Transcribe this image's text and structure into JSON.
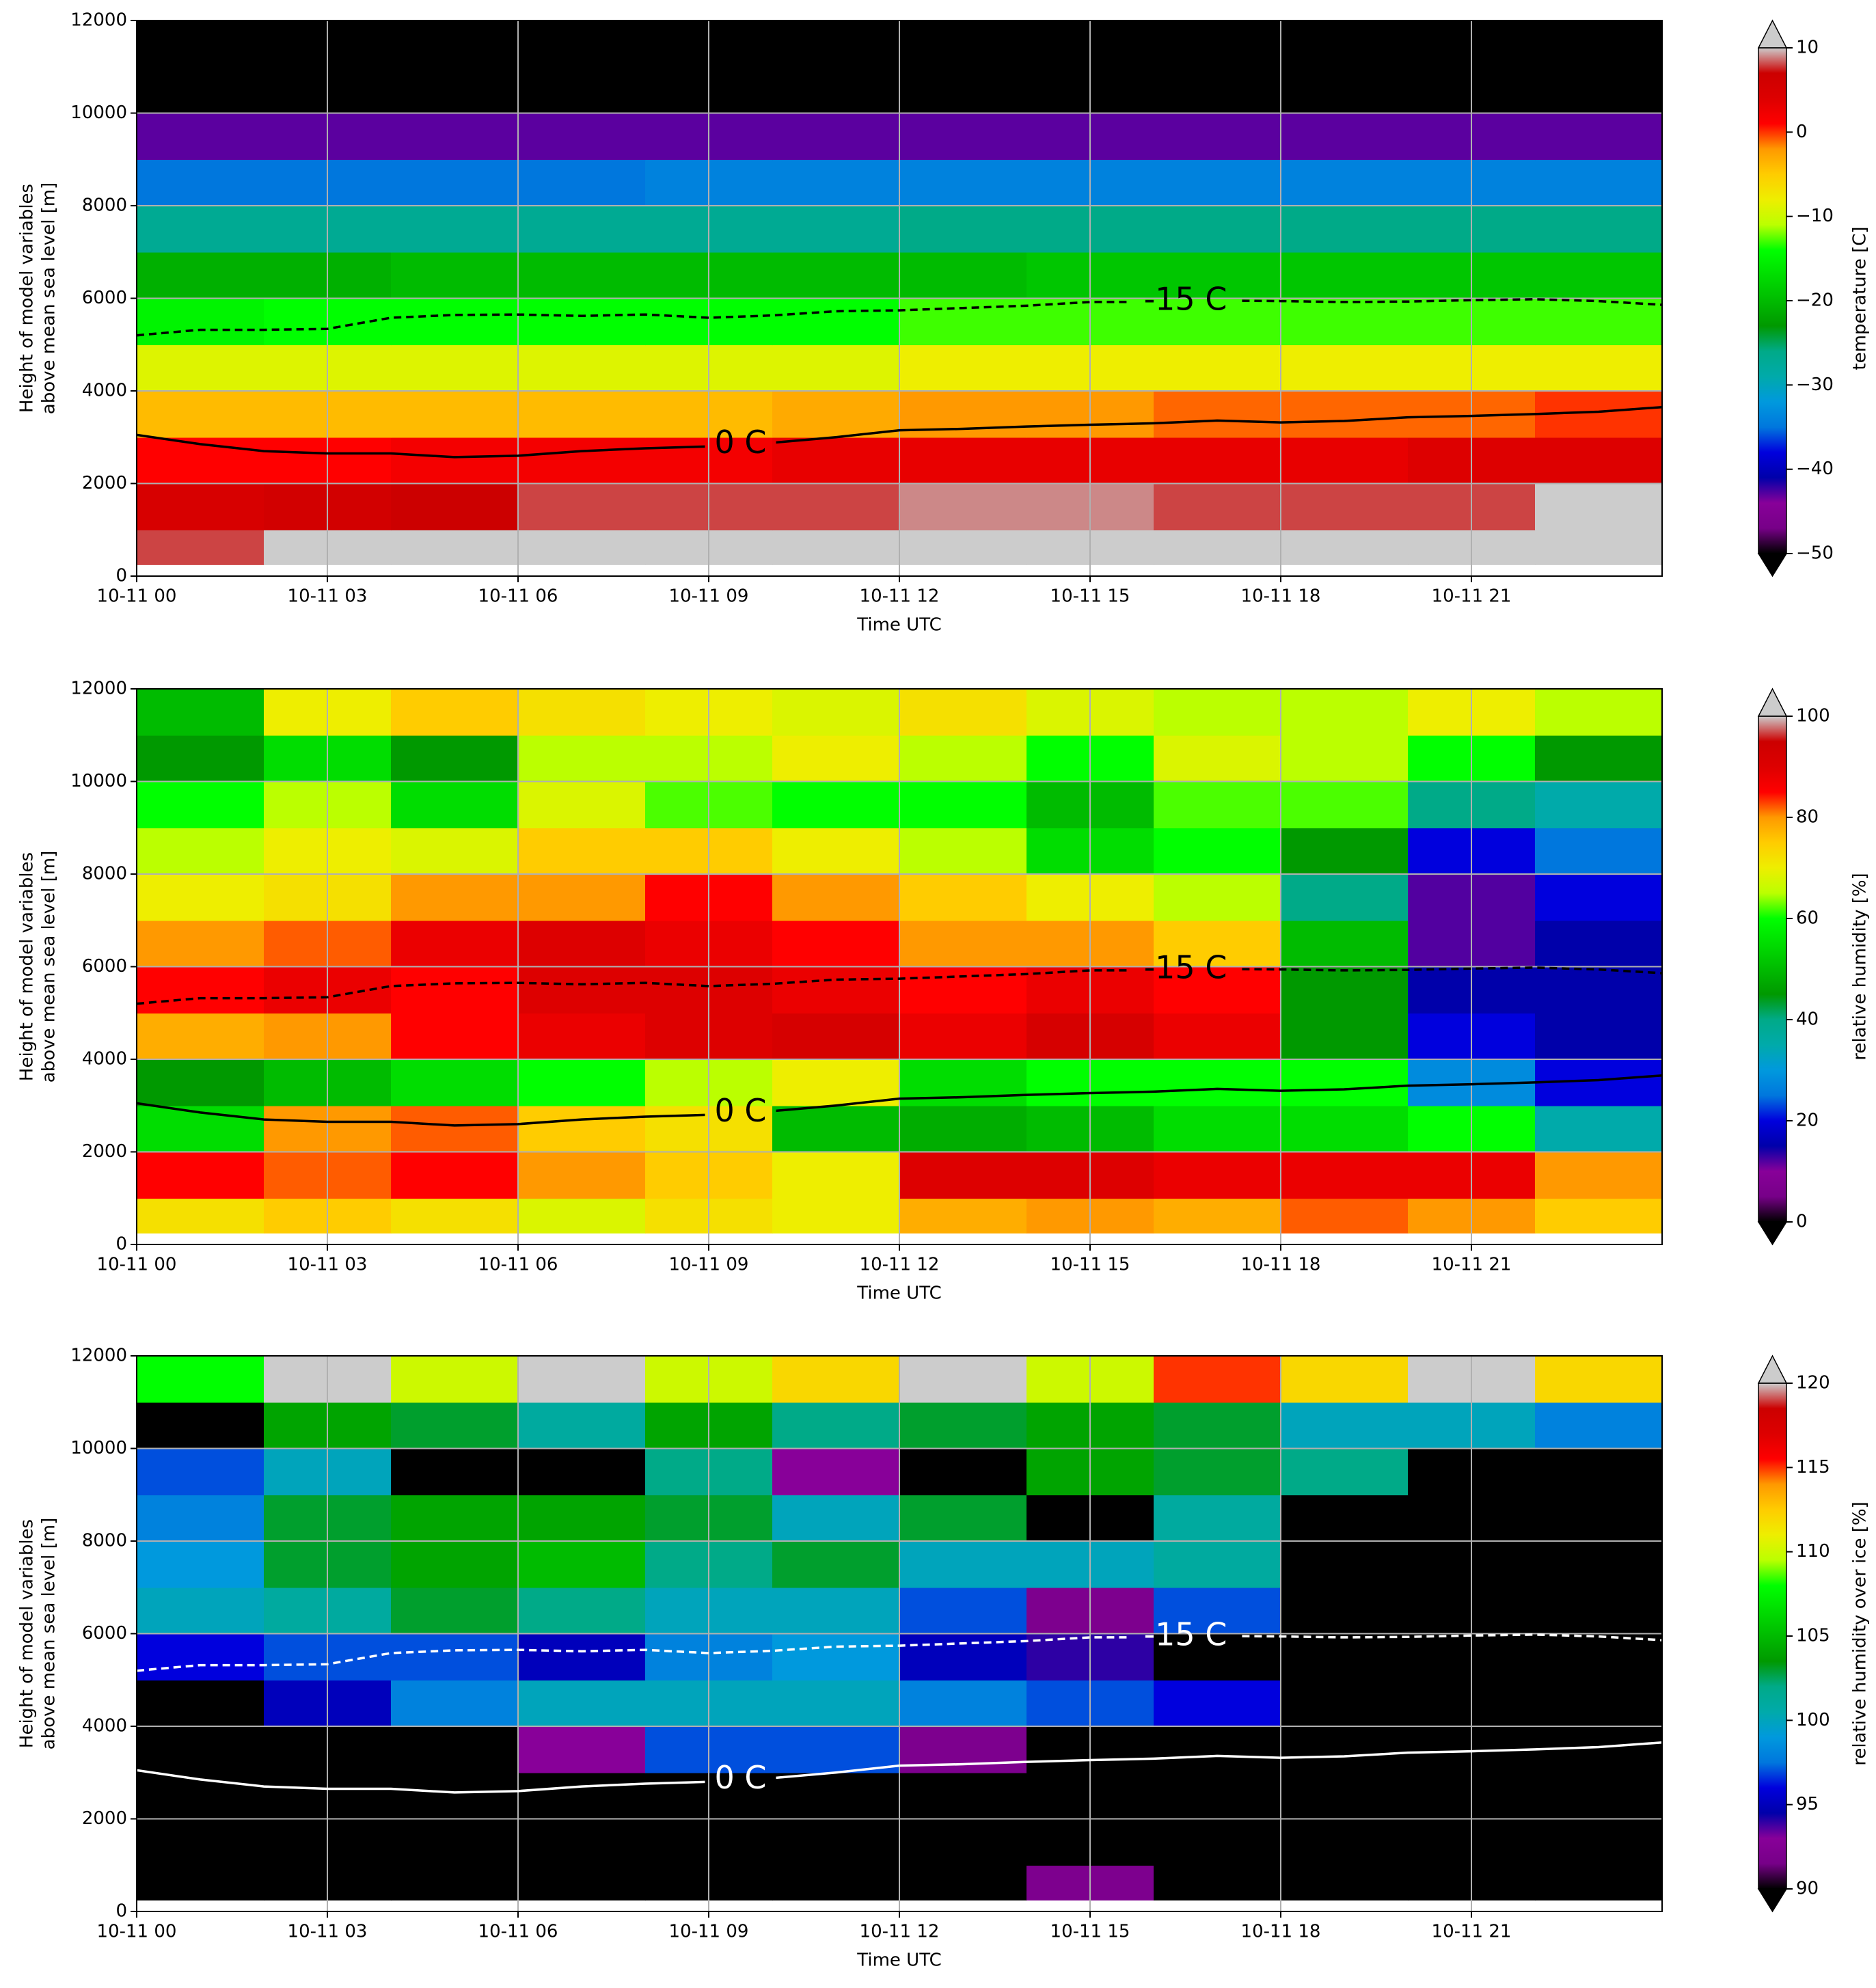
{
  "colormap": [
    "#000000",
    "#770088",
    "#880099",
    "#0000aa",
    "#0000dd",
    "#0077dd",
    "#0099dd",
    "#00aaaa",
    "#00aa88",
    "#009900",
    "#00bb00",
    "#00dd00",
    "#00ff00",
    "#bbff00",
    "#eeee00",
    "#ffcc00",
    "#ff9900",
    "#ff0000",
    "#dd0000",
    "#cc0000",
    "#cccccc"
  ],
  "contours": [
    {
      "level": 0,
      "label": "0 C",
      "linestyle": "solid",
      "x": [
        0,
        1,
        2,
        3,
        4,
        5,
        6,
        7,
        8,
        9,
        10,
        11,
        12,
        13,
        14,
        15,
        16,
        17,
        18,
        19,
        20,
        21,
        22,
        23,
        24
      ],
      "values": [
        3050,
        2850,
        2700,
        2650,
        2650,
        2570,
        2600,
        2700,
        2760,
        2800,
        2880,
        3000,
        3150,
        3180,
        3230,
        3270,
        3300,
        3360,
        3320,
        3350,
        3430,
        3460,
        3500,
        3550,
        3650
      ]
    },
    {
      "level": -15,
      "label": "-15 C",
      "linestyle": "dashed",
      "x": [
        0,
        1,
        2,
        3,
        4,
        5,
        6,
        7,
        8,
        9,
        10,
        11,
        12,
        13,
        14,
        15,
        16,
        17,
        18,
        19,
        20,
        21,
        22,
        23,
        24
      ],
      "values": [
        5200,
        5320,
        5320,
        5340,
        5580,
        5640,
        5650,
        5620,
        5650,
        5580,
        5630,
        5720,
        5740,
        5790,
        5840,
        5920,
        5920,
        5950,
        5940,
        5920,
        5930,
        5960,
        5980,
        5940,
        5860
      ]
    }
  ],
  "chart_data": [
    {
      "type": "heatmap",
      "xlabel": "Time UTC",
      "ylabel": [
        "Height of model variables",
        "above mean sea level [m]"
      ],
      "xlim": [
        0,
        24
      ],
      "xticks": [
        {
          "value": 0,
          "label": "10-11 00"
        },
        {
          "value": 3,
          "label": "10-11 03"
        },
        {
          "value": 6,
          "label": "10-11 06"
        },
        {
          "value": 9,
          "label": "10-11 09"
        },
        {
          "value": 12,
          "label": "10-11 12"
        },
        {
          "value": 15,
          "label": "10-11 15"
        },
        {
          "value": 18,
          "label": "10-11 18"
        },
        {
          "value": 21,
          "label": "10-11 21"
        }
      ],
      "ylim": [
        0,
        12000
      ],
      "yticks": [
        0,
        2000,
        4000,
        6000,
        8000,
        10000,
        12000
      ],
      "grid": true,
      "x_bins": [
        0,
        2,
        4,
        6,
        8,
        10,
        12,
        14,
        16,
        18,
        20,
        22,
        24
      ],
      "y_bins": [
        250,
        1000,
        2000,
        3000,
        4000,
        5000,
        6000,
        7000,
        8000,
        9000,
        10000,
        11000,
        12000
      ],
      "z": [
        [
          8,
          11,
          12,
          12,
          12,
          12,
          12,
          12,
          12,
          12,
          12,
          12
        ],
        [
          5,
          6,
          7,
          8,
          8,
          8,
          9,
          9,
          8,
          8,
          8,
          10
        ],
        [
          1,
          1,
          2,
          2,
          2,
          3,
          3,
          3,
          3,
          3,
          4,
          4
        ],
        [
          -4,
          -4,
          -4,
          -4,
          -4,
          -3,
          -2,
          -2,
          -1,
          -1,
          -1,
          0
        ],
        [
          -9,
          -9,
          -9,
          -9,
          -9,
          -9,
          -8,
          -8,
          -8,
          -8,
          -8,
          -8
        ],
        [
          -15,
          -14,
          -14,
          -14,
          -14,
          -14,
          -13,
          -13,
          -13,
          -13,
          -13,
          -13
        ],
        [
          -21,
          -21,
          -20,
          -20,
          -20,
          -20,
          -20,
          -19,
          -19,
          -19,
          -19,
          -19
        ],
        [
          -27,
          -27,
          -27,
          -27,
          -27,
          -27,
          -26,
          -26,
          -26,
          -26,
          -26,
          -26
        ],
        [
          -35,
          -35,
          -35,
          -35,
          -34,
          -34,
          -34,
          -34,
          -34,
          -34,
          -34,
          -34
        ],
        [
          -43,
          -43,
          -43,
          -43,
          -43,
          -43,
          -43,
          -43,
          -43,
          -43,
          -43,
          -43
        ],
        [
          -50,
          -51,
          -51,
          -51,
          -51,
          -51,
          -51,
          -51,
          -51,
          -51,
          -50,
          -50
        ],
        [
          -55,
          -55,
          -55,
          -55,
          -55,
          -55,
          -55,
          -55,
          -55,
          -55,
          -55,
          -55
        ]
      ],
      "clim": [
        -50,
        10
      ],
      "cticks": [
        {
          "value": -50,
          "label": "−50"
        },
        {
          "value": -40,
          "label": "−40"
        },
        {
          "value": -30,
          "label": "−30"
        },
        {
          "value": -20,
          "label": "−20"
        },
        {
          "value": -10,
          "label": "−10"
        },
        0,
        10
      ],
      "colorbar_label": "temperature [C]",
      "contour_color": "#000000"
    },
    {
      "type": "heatmap",
      "xlabel": "Time UTC",
      "ylabel": [
        "Height of model variables",
        "above mean sea level [m]"
      ],
      "xlim": [
        0,
        24
      ],
      "xticks": [
        {
          "value": 0,
          "label": "10-11 00"
        },
        {
          "value": 3,
          "label": "10-11 03"
        },
        {
          "value": 6,
          "label": "10-11 06"
        },
        {
          "value": 9,
          "label": "10-11 09"
        },
        {
          "value": 12,
          "label": "10-11 12"
        },
        {
          "value": 15,
          "label": "10-11 15"
        },
        {
          "value": 18,
          "label": "10-11 18"
        },
        {
          "value": 21,
          "label": "10-11 21"
        }
      ],
      "ylim": [
        0,
        12000
      ],
      "yticks": [
        0,
        2000,
        4000,
        6000,
        8000,
        10000,
        12000
      ],
      "grid": true,
      "x_bins": [
        0,
        2,
        4,
        6,
        8,
        10,
        12,
        14,
        16,
        18,
        20,
        22,
        24
      ],
      "y_bins": [
        250,
        1000,
        2000,
        3000,
        4000,
        5000,
        6000,
        7000,
        8000,
        9000,
        10000,
        11000,
        12000
      ],
      "z": [
        [
          72,
          75,
          72,
          68,
          72,
          70,
          78,
          80,
          78,
          82,
          80,
          75
        ],
        [
          85,
          82,
          85,
          80,
          75,
          70,
          90,
          90,
          88,
          88,
          88,
          80
        ],
        [
          55,
          80,
          82,
          75,
          72,
          50,
          48,
          50,
          55,
          55,
          60,
          35
        ],
        [
          45,
          50,
          55,
          60,
          65,
          70,
          55,
          60,
          60,
          60,
          28,
          20
        ],
        [
          78,
          80,
          85,
          88,
          90,
          92,
          88,
          92,
          88,
          45,
          20,
          15
        ],
        [
          85,
          88,
          85,
          90,
          90,
          88,
          85,
          88,
          85,
          45,
          15,
          15
        ],
        [
          80,
          82,
          88,
          90,
          88,
          85,
          80,
          80,
          75,
          50,
          12,
          15
        ],
        [
          70,
          72,
          80,
          80,
          85,
          80,
          75,
          70,
          65,
          40,
          12,
          20
        ],
        [
          65,
          70,
          68,
          75,
          75,
          70,
          65,
          55,
          60,
          45,
          20,
          25
        ],
        [
          60,
          65,
          55,
          68,
          62,
          60,
          60,
          50,
          62,
          62,
          40,
          35
        ],
        [
          45,
          55,
          45,
          65,
          65,
          70,
          65,
          60,
          68,
          65,
          60,
          45
        ],
        [
          50,
          70,
          75,
          72,
          70,
          68,
          72,
          68,
          65,
          65,
          70,
          65
        ]
      ],
      "clim": [
        0,
        100
      ],
      "cticks": [
        0,
        20,
        40,
        60,
        80,
        100
      ],
      "colorbar_label": "relative humidity [%]",
      "contour_color": "#000000"
    },
    {
      "type": "heatmap",
      "xlabel": "Time UTC",
      "ylabel": [
        "Height of model variables",
        "above mean sea level [m]"
      ],
      "xlim": [
        0,
        24
      ],
      "xticks": [
        {
          "value": 0,
          "label": "10-11 00"
        },
        {
          "value": 3,
          "label": "10-11 03"
        },
        {
          "value": 6,
          "label": "10-11 06"
        },
        {
          "value": 9,
          "label": "10-11 09"
        },
        {
          "value": 12,
          "label": "10-11 12"
        },
        {
          "value": 15,
          "label": "10-11 15"
        },
        {
          "value": 18,
          "label": "10-11 18"
        },
        {
          "value": 21,
          "label": "10-11 21"
        }
      ],
      "ylim": [
        0,
        12000
      ],
      "yticks": [
        0,
        2000,
        4000,
        6000,
        8000,
        10000,
        12000
      ],
      "grid": true,
      "x_bins": [
        0,
        2,
        4,
        6,
        8,
        10,
        12,
        14,
        16,
        18,
        20,
        22,
        24
      ],
      "y_bins": [
        250,
        1000,
        2000,
        3000,
        4000,
        5000,
        6000,
        7000,
        8000,
        9000,
        10000,
        11000,
        12000
      ],
      "z": [
        [
          80,
          80,
          80,
          80,
          80,
          80,
          80,
          92,
          80,
          80,
          80,
          80
        ],
        [
          80,
          80,
          80,
          80,
          80,
          80,
          80,
          80,
          80,
          80,
          80,
          80
        ],
        [
          80,
          80,
          80,
          80,
          80,
          80,
          80,
          80,
          80,
          80,
          80,
          80
        ],
        [
          80,
          80,
          85,
          93,
          97,
          97,
          92,
          80,
          80,
          80,
          80,
          80
        ],
        [
          85,
          95,
          98,
          100,
          100,
          100,
          98,
          97,
          96,
          80,
          80,
          80
        ],
        [
          96,
          97,
          97,
          95,
          98,
          99,
          95,
          94,
          85,
          80,
          80,
          80
        ],
        [
          100,
          101,
          103,
          102,
          100,
          100,
          97,
          92,
          97,
          80,
          80,
          80
        ],
        [
          99,
          103,
          104,
          105,
          102,
          103,
          100,
          100,
          101,
          80,
          80,
          80
        ],
        [
          98,
          103,
          104,
          104,
          103,
          100,
          103,
          85,
          101,
          80,
          80,
          80
        ],
        [
          97,
          100,
          85,
          85,
          102,
          93,
          85,
          104,
          103,
          102,
          80,
          80
        ],
        [
          85,
          104,
          103,
          101,
          104,
          102,
          103,
          104,
          103,
          100,
          100,
          98
        ],
        [
          108,
          125,
          110,
          125,
          110,
          112,
          125,
          110,
          115,
          112,
          125,
          112
        ]
      ],
      "clim": [
        90,
        120
      ],
      "cticks": [
        90,
        95,
        100,
        105,
        110,
        115,
        120
      ],
      "colorbar_label": "relative humidity over ice [%]",
      "contour_color": "#ffffff"
    }
  ]
}
